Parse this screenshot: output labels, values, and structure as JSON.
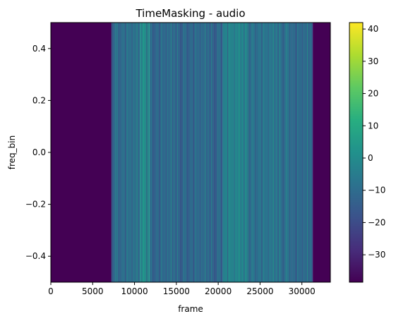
{
  "chart_data": {
    "type": "heatmap",
    "title": "TimeMasking - audio",
    "xlabel": "frame",
    "ylabel": "freq_bin",
    "xlim": [
      0,
      33400
    ],
    "ylim": [
      -0.5,
      0.5
    ],
    "x_ticks": [
      0,
      5000,
      10000,
      15000,
      20000,
      25000,
      30000
    ],
    "x_tick_labels": [
      "0",
      "5000",
      "10000",
      "15000",
      "20000",
      "25000",
      "30000"
    ],
    "y_ticks": [
      0.4,
      0.2,
      0.0,
      -0.2,
      -0.4
    ],
    "y_tick_labels": [
      "0.4",
      "0.2",
      "0.0",
      "−0.2",
      "−0.4"
    ],
    "colormap": "viridis",
    "colorbar": {
      "min": -38.5,
      "max": 42,
      "ticks": [
        40,
        30,
        20,
        10,
        0,
        -10,
        -20,
        -30
      ],
      "tick_labels": [
        "40",
        "30",
        "20",
        "10",
        "0",
        "−10",
        "−20",
        "−30"
      ]
    },
    "segments": [
      {
        "x_start": 0,
        "x_end": 7250,
        "value": -38.5
      },
      {
        "x_start": 7250,
        "x_end": 10700,
        "value": -10
      },
      {
        "x_start": 10700,
        "x_end": 11800,
        "value": 3
      },
      {
        "x_start": 11800,
        "x_end": 20500,
        "value": -12
      },
      {
        "x_start": 20500,
        "x_end": 23700,
        "value": -2
      },
      {
        "x_start": 23700,
        "x_end": 28800,
        "value": -8
      },
      {
        "x_start": 28800,
        "x_end": 31300,
        "value": -12
      },
      {
        "x_start": 31300,
        "x_end": 33400,
        "value": -38.5
      }
    ]
  }
}
